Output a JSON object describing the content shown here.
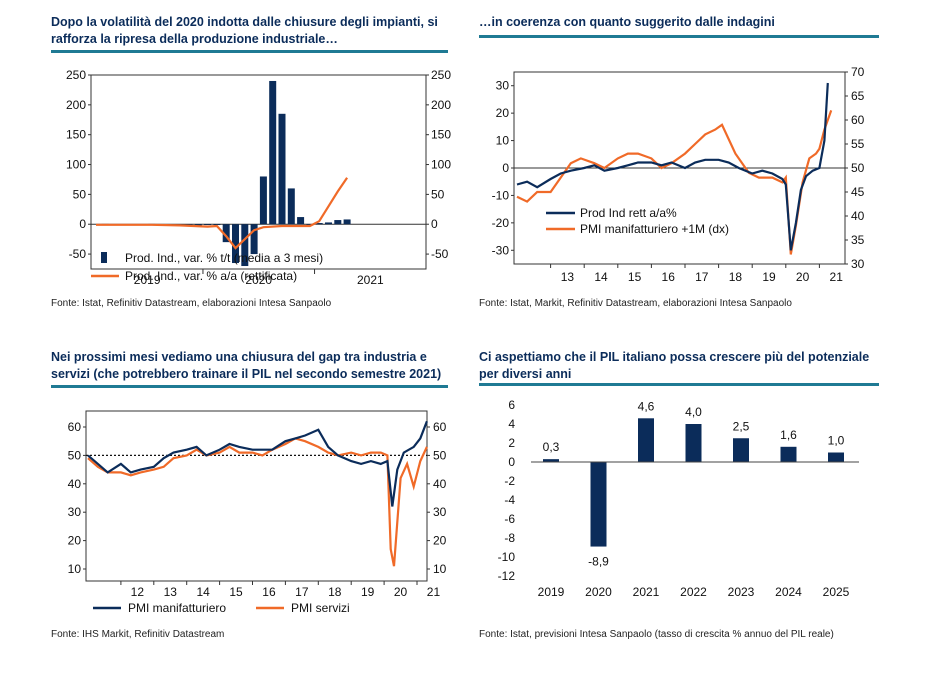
{
  "colors": {
    "navy": "#0b2c5a",
    "orange": "#f06a28",
    "rule": "#1f7a94"
  },
  "panels": [
    {
      "title": "Dopo la volatilità del 2020 indotta dalle chiusure degli impianti, si rafforza la ripresa della produzione industriale…",
      "source": "Fonte: Istat, Refinitiv Datastream, elaborazioni Intesa Sanpaolo"
    },
    {
      "title": "…in coerenza con quanto suggerito dalle indagini",
      "source": "Fonte: Istat, Markit, Refinitiv Datastream, elaborazioni Intesa Sanpaolo"
    },
    {
      "title": "Nei prossimi mesi vediamo una chiusura del gap tra industria e servizi (che potrebbero trainare il PIL nel secondo semestre 2021)",
      "source": "Fonte: IHS Markit, Refinitiv Datastream"
    },
    {
      "title": "Ci aspettiamo che il PIL italiano possa crescere più del potenziale per diversi anni",
      "source": "Fonte: Istat, previsioni Intesa Sanpaolo (tasso di crescita % annuo del PIL reale)"
    }
  ],
  "chart_data": [
    {
      "type": "bar",
      "xticks": [
        "2019",
        "2020",
        "2021"
      ],
      "ylim": [
        -75,
        250
      ],
      "yticks": [
        -50,
        0,
        50,
        100,
        150,
        200,
        250
      ],
      "yticks_right": [
        -50,
        0,
        50,
        100,
        150,
        200,
        250
      ],
      "series": [
        {
          "name": "Prod. Ind., var. % t/t (media a 3 mesi)",
          "kind": "bar",
          "x": [
            "2019-02",
            "2019-03",
            "2019-04",
            "2019-05",
            "2019-06",
            "2019-07",
            "2019-08",
            "2019-09",
            "2019-10",
            "2019-11",
            "2019-12",
            "2020-01",
            "2020-02",
            "2020-03",
            "2020-04",
            "2020-05",
            "2020-06",
            "2020-07",
            "2020-08",
            "2020-09",
            "2020-10",
            "2020-11",
            "2020-12",
            "2021-01",
            "2021-02",
            "2021-03",
            "2021-04"
          ],
          "values": [
            0.5,
            -0.5,
            -1,
            -1,
            -0.5,
            0.5,
            0,
            -0.5,
            -1,
            -2,
            -3,
            -1,
            -0.5,
            -30,
            -65,
            -70,
            -50,
            80,
            240,
            185,
            60,
            12,
            0,
            2,
            3,
            7,
            8
          ]
        },
        {
          "name": "Prod. Ind., var. % a/a (rettificata)",
          "kind": "line",
          "x": [
            "2019-01",
            "2019-04",
            "2019-07",
            "2019-10",
            "2020-01",
            "2020-02",
            "2020-03",
            "2020-04",
            "2020-05",
            "2020-06",
            "2020-07",
            "2020-09",
            "2020-12",
            "2021-01",
            "2021-02",
            "2021-03",
            "2021-04"
          ],
          "values": [
            -1,
            -1,
            -1,
            -2,
            -4,
            -3,
            -20,
            -40,
            -25,
            -10,
            -5,
            -3,
            -3,
            5,
            30,
            55,
            78
          ]
        }
      ]
    },
    {
      "type": "line",
      "xticks": [
        "13",
        "14",
        "15",
        "16",
        "17",
        "18",
        "19",
        "20",
        "21"
      ],
      "ylim": [
        -35,
        35
      ],
      "yticks": [
        -30,
        -20,
        -10,
        0,
        10,
        20,
        30
      ],
      "ylim_right": [
        30,
        70
      ],
      "yticks_right": [
        30,
        35,
        40,
        45,
        50,
        55,
        60,
        65,
        70
      ],
      "series": [
        {
          "name": "Prod Ind rett a/a%",
          "axis": "left",
          "x": [
            2012.0,
            2012.3,
            2012.6,
            2013.0,
            2013.3,
            2013.6,
            2014.0,
            2014.3,
            2014.6,
            2015.0,
            2015.3,
            2015.6,
            2016.0,
            2016.3,
            2016.6,
            2017.0,
            2017.3,
            2017.6,
            2018.0,
            2018.3,
            2018.6,
            2019.0,
            2019.3,
            2019.6,
            2019.9,
            2020.0,
            2020.15,
            2020.3,
            2020.45,
            2020.6,
            2020.8,
            2021.0,
            2021.15,
            2021.25
          ],
          "values": [
            -6,
            -5,
            -7,
            -4,
            -2,
            -1,
            0,
            1,
            -1,
            0,
            1,
            2,
            2,
            1,
            2,
            0,
            2,
            3,
            3,
            2,
            0,
            -2,
            -1,
            -2,
            -4,
            -6,
            -30,
            -20,
            -8,
            -3,
            -1,
            0,
            10,
            31
          ]
        },
        {
          "name": "PMI manifatturiero +1M (dx)",
          "axis": "right",
          "x": [
            2012.0,
            2012.3,
            2012.6,
            2013.0,
            2013.3,
            2013.6,
            2013.9,
            2014.3,
            2014.6,
            2015.0,
            2015.3,
            2015.6,
            2016.0,
            2016.3,
            2016.6,
            2017.0,
            2017.3,
            2017.6,
            2017.9,
            2018.1,
            2018.5,
            2018.9,
            2019.2,
            2019.6,
            2019.9,
            2020.0,
            2020.15,
            2020.3,
            2020.5,
            2020.7,
            2020.9,
            2021.0,
            2021.15,
            2021.35
          ],
          "values": [
            44,
            43,
            45,
            45,
            48,
            51,
            52,
            51,
            50,
            52,
            53,
            53,
            52,
            50,
            51,
            53,
            55,
            57,
            58,
            59,
            53,
            49,
            48,
            48,
            47,
            48,
            32,
            38,
            47,
            52,
            53,
            54,
            58,
            62
          ]
        }
      ]
    },
    {
      "type": "line",
      "xticks": [
        "12",
        "13",
        "14",
        "15",
        "16",
        "17",
        "18",
        "19",
        "20",
        "21"
      ],
      "ylim": [
        10,
        65
      ],
      "yticks": [
        10,
        20,
        30,
        40,
        50,
        60
      ],
      "yticks_right": [
        10,
        20,
        30,
        40,
        50,
        60
      ],
      "reference_line": 50,
      "series": [
        {
          "name": "PMI manifatturiero",
          "x": [
            2011.0,
            2011.3,
            2011.6,
            2012.0,
            2012.3,
            2012.6,
            2013.0,
            2013.3,
            2013.6,
            2014.0,
            2014.3,
            2014.6,
            2015.0,
            2015.3,
            2015.6,
            2016.0,
            2016.3,
            2016.6,
            2017.0,
            2017.3,
            2017.6,
            2018.0,
            2018.3,
            2018.6,
            2019.0,
            2019.3,
            2019.6,
            2019.9,
            2020.1,
            2020.25,
            2020.4,
            2020.6,
            2020.9,
            2021.1,
            2021.3
          ],
          "values": [
            50,
            47,
            44,
            47,
            44,
            45,
            46,
            49,
            51,
            52,
            53,
            50,
            52,
            54,
            53,
            52,
            52,
            52,
            55,
            56,
            57,
            59,
            53,
            50,
            48,
            47,
            48,
            47,
            48,
            32,
            45,
            51,
            53,
            56,
            62
          ]
        },
        {
          "name": "PMI servizi",
          "x": [
            2011.0,
            2011.3,
            2011.6,
            2012.0,
            2012.3,
            2012.6,
            2013.0,
            2013.3,
            2013.6,
            2014.0,
            2014.3,
            2014.6,
            2015.0,
            2015.3,
            2015.6,
            2016.0,
            2016.3,
            2016.6,
            2017.0,
            2017.3,
            2017.6,
            2018.0,
            2018.3,
            2018.6,
            2019.0,
            2019.3,
            2019.6,
            2019.9,
            2020.1,
            2020.2,
            2020.3,
            2020.5,
            2020.7,
            2020.9,
            2021.1,
            2021.3
          ],
          "values": [
            49,
            46,
            44,
            44,
            43,
            44,
            45,
            46,
            49,
            50,
            52,
            50,
            51,
            53,
            51,
            51,
            50,
            52,
            54,
            56,
            55,
            53,
            51,
            50,
            51,
            50,
            51,
            51,
            50,
            17,
            11,
            42,
            47,
            39,
            48,
            53
          ]
        }
      ]
    },
    {
      "type": "bar",
      "categories": [
        "2019",
        "2020",
        "2021",
        "2022",
        "2023",
        "2024",
        "2025"
      ],
      "values": [
        0.3,
        -8.9,
        4.6,
        4.0,
        2.5,
        1.6,
        1.0
      ],
      "labels": [
        "0,3",
        "-8,9",
        "4,6",
        "4,0",
        "2,5",
        "1,6",
        "1,0"
      ],
      "ylim": [
        -12,
        6
      ],
      "yticks": [
        -12,
        -10,
        -8,
        -6,
        -4,
        -2,
        0,
        2,
        4,
        6
      ]
    }
  ]
}
